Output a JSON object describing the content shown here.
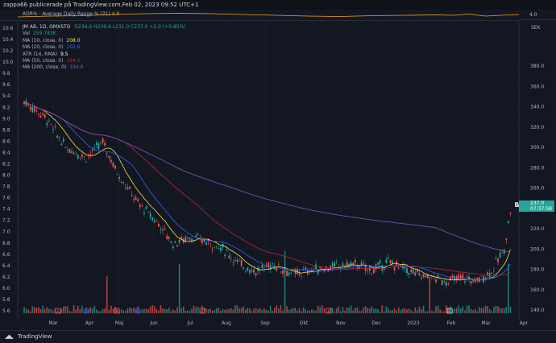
{
  "header": {
    "title": "zappa66 publicerade på TradingView.com,Feb 02, 2023 09:52 UTC+1"
  },
  "adr": {
    "label": "ADR% · Average Daily Range % (21)",
    "value": "4.0",
    "axis_value": "4.0",
    "color": "#f5a623"
  },
  "legend": {
    "symbol": "JM AB, 1D, OMXSTO",
    "ohlc": "O234.6 H239.6 L231.0 C237.0 +2.0 (+0.85%)",
    "items": [
      {
        "label": "Vol",
        "value": "259.783K",
        "color": "#26a69a"
      },
      {
        "label": "MA (10, close, 0)",
        "value": "208.0",
        "color": "#f5e04a"
      },
      {
        "label": "MA (20, close, 0)",
        "value": "202.6",
        "color": "#2962ff"
      },
      {
        "label": "ATR (14, RMA)",
        "value": "9.5",
        "color": "#ffffff"
      },
      {
        "label": "MA (50, close, 0)",
        "value": "184.6",
        "color": "#b22833"
      },
      {
        "label": "MA (200, close, 0)",
        "value": "194.6",
        "color": "#7e57c2"
      }
    ]
  },
  "right_axis": {
    "currency": "SEK",
    "ticks": [
      "380.0",
      "360.0",
      "340.0",
      "320.0",
      "300.0",
      "280.0",
      "260.0",
      "240.0",
      "220.0",
      "200.0",
      "180.0",
      "160.0",
      "140.0"
    ]
  },
  "left_axis": {
    "ticks": [
      "10.6",
      "10.4",
      "10.2",
      "10.0",
      "9.8",
      "9.6",
      "9.4",
      "9.2",
      "9.0",
      "8.8",
      "8.6",
      "8.4",
      "8.2",
      "8.0",
      "7.8",
      "7.6",
      "7.4",
      "7.2",
      "7.0",
      "6.8",
      "6.6",
      "6.4",
      "6.2",
      "6.0",
      "5.8",
      "5.6"
    ]
  },
  "x_axis": {
    "labels": [
      "Mar",
      "Apr",
      "Maj",
      "Jun",
      "Jul",
      "Aug",
      "Sep",
      "Okt",
      "Nov",
      "Dec",
      "2023",
      "Feb",
      "Mar",
      "Apr"
    ]
  },
  "price_tag": {
    "symbol": "JM",
    "price": "237.0",
    "countdown": "07:37:58",
    "color": "#26a69a"
  },
  "footer": {
    "brand": "TradingView"
  },
  "colors": {
    "up": "#26a69a",
    "down": "#ef5350",
    "background": "#131722",
    "grid": "#1e222d"
  }
}
